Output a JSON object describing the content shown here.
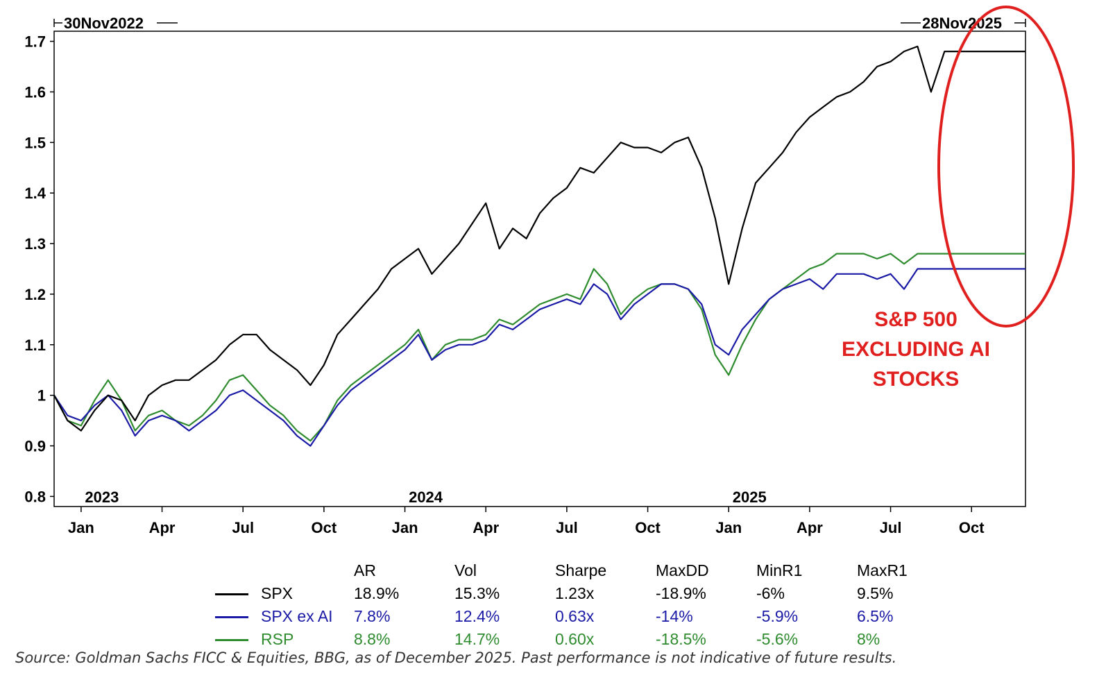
{
  "chart_data": {
    "type": "line",
    "title": "",
    "date_range": {
      "start_label": "30Nov2022",
      "end_label": "28Nov2025"
    },
    "year_labels": [
      "2023",
      "2024",
      "2025"
    ],
    "month_ticks": [
      "Jan",
      "Apr",
      "Jul",
      "Oct",
      "Jan",
      "Apr",
      "Jul",
      "Oct",
      "Jan",
      "Apr",
      "Jul",
      "Oct"
    ],
    "ylim": [
      0.78,
      1.72
    ],
    "yticks": [
      {
        "value": 0.8,
        "label": "0.8"
      },
      {
        "value": 0.9,
        "label": "0.9"
      },
      {
        "value": 1.0,
        "label": "1"
      },
      {
        "value": 1.1,
        "label": "1.1"
      },
      {
        "value": 1.2,
        "label": "1.2"
      },
      {
        "value": 1.3,
        "label": "1.3"
      },
      {
        "value": 1.4,
        "label": "1.4"
      },
      {
        "value": 1.5,
        "label": "1.5"
      },
      {
        "value": 1.6,
        "label": "1.6"
      },
      {
        "value": 1.7,
        "label": "1.7"
      }
    ],
    "x_months_from_start": [
      0,
      0.5,
      1,
      1.5,
      2,
      2.5,
      3,
      3.5,
      4,
      4.5,
      5,
      5.5,
      6,
      6.5,
      7,
      7.5,
      8,
      8.5,
      9,
      9.5,
      10,
      10.5,
      11,
      11.5,
      12,
      12.5,
      13,
      13.5,
      14,
      14.5,
      15,
      15.5,
      16,
      16.5,
      17,
      17.5,
      18,
      18.5,
      19,
      19.5,
      20,
      20.5,
      21,
      21.5,
      22,
      22.5,
      23,
      23.5,
      24,
      24.5,
      25,
      25.5,
      26,
      26.5,
      27,
      27.5,
      28,
      28.5,
      29,
      29.5,
      30,
      30.5,
      31,
      31.5,
      32,
      32.5,
      33,
      33.5,
      34,
      34.5,
      35,
      35.5,
      36
    ],
    "series": [
      {
        "name": "SPX",
        "color": "#000000",
        "values": [
          1.0,
          0.95,
          0.93,
          0.97,
          1.0,
          0.99,
          0.95,
          1.0,
          1.02,
          1.03,
          1.03,
          1.05,
          1.07,
          1.1,
          1.12,
          1.12,
          1.09,
          1.07,
          1.05,
          1.02,
          1.06,
          1.12,
          1.15,
          1.18,
          1.21,
          1.25,
          1.27,
          1.29,
          1.24,
          1.27,
          1.3,
          1.34,
          1.38,
          1.29,
          1.33,
          1.31,
          1.36,
          1.39,
          1.41,
          1.45,
          1.44,
          1.47,
          1.5,
          1.49,
          1.49,
          1.48,
          1.5,
          1.51,
          1.45,
          1.35,
          1.22,
          1.33,
          1.42,
          1.45,
          1.48,
          1.52,
          1.55,
          1.57,
          1.59,
          1.6,
          1.62,
          1.65,
          1.66,
          1.68,
          1.69,
          1.6,
          1.68,
          1.68,
          1.68,
          1.68,
          1.68,
          1.68,
          1.68
        ]
      },
      {
        "name": "SPX ex AI",
        "color": "#1a1aa6",
        "values": [
          1.0,
          0.96,
          0.95,
          0.98,
          1.0,
          0.97,
          0.92,
          0.95,
          0.96,
          0.95,
          0.93,
          0.95,
          0.97,
          1.0,
          1.01,
          0.99,
          0.97,
          0.95,
          0.92,
          0.9,
          0.94,
          0.98,
          1.01,
          1.03,
          1.05,
          1.07,
          1.09,
          1.12,
          1.07,
          1.09,
          1.1,
          1.1,
          1.11,
          1.14,
          1.13,
          1.15,
          1.17,
          1.18,
          1.19,
          1.18,
          1.22,
          1.2,
          1.15,
          1.18,
          1.2,
          1.22,
          1.22,
          1.21,
          1.18,
          1.1,
          1.08,
          1.13,
          1.16,
          1.19,
          1.21,
          1.22,
          1.23,
          1.21,
          1.24,
          1.24,
          1.24,
          1.23,
          1.24,
          1.21,
          1.25,
          1.25,
          1.25,
          1.25,
          1.25,
          1.25,
          1.25,
          1.25,
          1.25
        ]
      },
      {
        "name": "RSP",
        "color": "#2e8b2e",
        "values": [
          1.0,
          0.95,
          0.94,
          0.99,
          1.03,
          0.99,
          0.93,
          0.96,
          0.97,
          0.95,
          0.94,
          0.96,
          0.99,
          1.03,
          1.04,
          1.01,
          0.98,
          0.96,
          0.93,
          0.91,
          0.94,
          0.99,
          1.02,
          1.04,
          1.06,
          1.08,
          1.1,
          1.13,
          1.07,
          1.1,
          1.11,
          1.11,
          1.12,
          1.15,
          1.14,
          1.16,
          1.18,
          1.19,
          1.2,
          1.19,
          1.25,
          1.22,
          1.16,
          1.19,
          1.21,
          1.22,
          1.22,
          1.21,
          1.17,
          1.08,
          1.04,
          1.1,
          1.15,
          1.19,
          1.21,
          1.23,
          1.25,
          1.26,
          1.28,
          1.28,
          1.28,
          1.27,
          1.28,
          1.26,
          1.28,
          1.28,
          1.28,
          1.28,
          1.28,
          1.28,
          1.28,
          1.28,
          1.28
        ]
      }
    ],
    "annotation": {
      "lines": [
        "S&P 500",
        "EXCLUDING AI",
        "STOCKS"
      ],
      "color": "#e0201e"
    },
    "stats": {
      "headers": [
        "AR",
        "Vol",
        "Sharpe",
        "MaxDD",
        "MinR1",
        "MaxR1"
      ],
      "rows": [
        {
          "name": "SPX",
          "color": "#000000",
          "values": [
            "18.9%",
            "15.3%",
            "1.23x",
            "-18.9%",
            "-6%",
            "9.5%"
          ]
        },
        {
          "name": "SPX ex AI",
          "color": "#1a1aa6",
          "values": [
            "7.8%",
            "12.4%",
            "0.63x",
            "-14%",
            "-5.9%",
            "6.5%"
          ]
        },
        {
          "name": "RSP",
          "color": "#2e8b2e",
          "values": [
            "8.8%",
            "14.7%",
            "0.60x",
            "-18.5%",
            "-5.6%",
            "8%"
          ]
        }
      ]
    }
  },
  "source": "Source: Goldman Sachs FICC & Equities, BBG, as of December 2025. Past performance is not indicative of future results."
}
